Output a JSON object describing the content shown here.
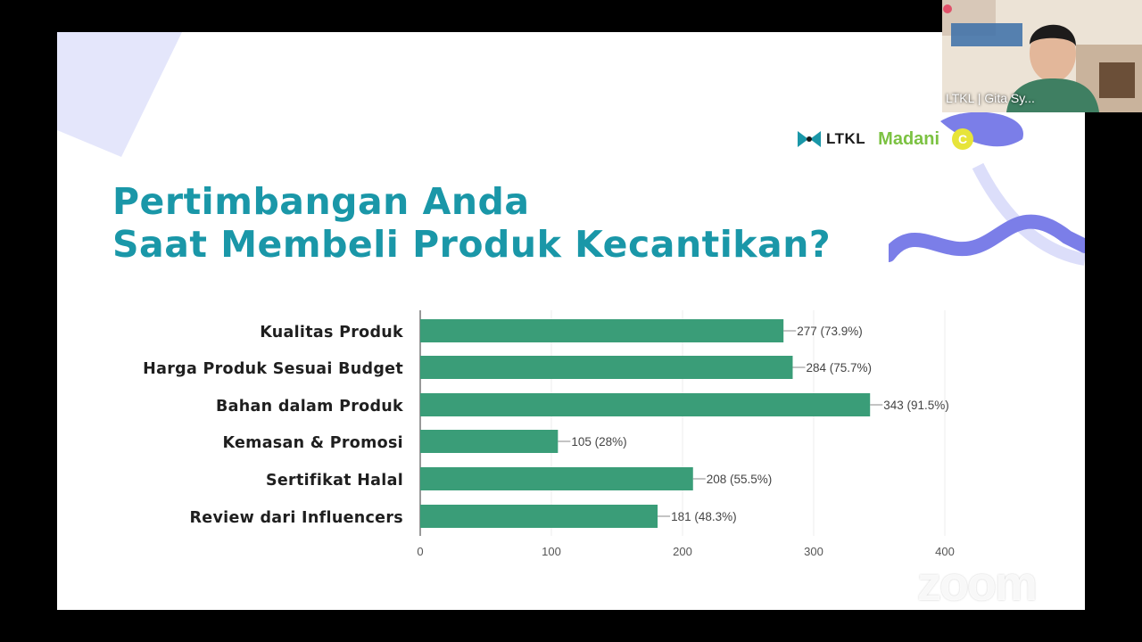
{
  "slide": {
    "title_line1": "Pertimbangan Anda",
    "title_line2": "Saat Membeli Produk Kecantikan?"
  },
  "logos": {
    "ltkl": "LTKL",
    "madani": "Madani",
    "circle": "C"
  },
  "webcam": {
    "participant_name": "LTKL | Gita Sy..."
  },
  "watermark": {
    "text": "zoom"
  },
  "colors": {
    "title": "#1a97a8",
    "bar": "#3a9d78",
    "decor_purple": "#7b7ee8",
    "decor_lavender": "#d9dbfa"
  },
  "chart_data": {
    "type": "bar",
    "orientation": "horizontal",
    "categories": [
      "Kualitas Produk",
      "Harga Produk Sesuai Budget",
      "Bahan dalam Produk",
      "Kemasan & Promosi",
      "Sertifikat Halal",
      "Review dari Influencers"
    ],
    "values": [
      277,
      284,
      343,
      105,
      208,
      181
    ],
    "data_labels": [
      "277 (73.9%)",
      "284 (75.7%)",
      "343 (91.5%)",
      "105 (28%)",
      "208 (55.5%)",
      "181 (48.3%)"
    ],
    "xlim": [
      0,
      400
    ],
    "xticks": [
      0,
      100,
      200,
      300,
      400
    ],
    "grid": true
  }
}
